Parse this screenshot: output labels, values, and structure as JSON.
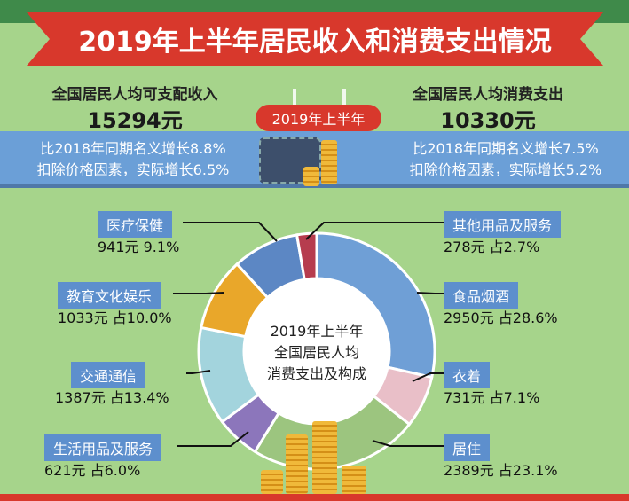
{
  "title": "2019年上半年居民收入和消费支出情况",
  "period_badge": "2019年上半年",
  "income": {
    "heading": "全国居民人均可支配收入",
    "amount": "15294元",
    "line1": "比2018年同期名义增长8.8%",
    "line2": "扣除价格因素，实际增长6.5%"
  },
  "spending": {
    "heading": "全国居民人均消费支出",
    "amount": "10330元",
    "line1": "比2018年同期名义增长7.5%",
    "line2": "扣除价格因素，实际增长5.2%"
  },
  "chart_data": {
    "type": "pie",
    "variant": "donut",
    "title": "2019年上半年 全国居民人均 消费支出及构成",
    "center_lines": [
      "2019年上半年",
      "全国居民人均",
      "消费支出及构成"
    ],
    "unit": "元",
    "slices": [
      {
        "name": "食品烟酒",
        "value": 2950,
        "percent": 28.6,
        "value_label": "2950元 占28.6%",
        "color": "#6f9fd6"
      },
      {
        "name": "衣着",
        "value": 731,
        "percent": 7.1,
        "value_label": "731元 占7.1%",
        "color": "#e9bfc8"
      },
      {
        "name": "居住",
        "value": 2389,
        "percent": 23.1,
        "value_label": "2389元 占23.1%",
        "color": "#9cc57f"
      },
      {
        "name": "生活用品及服务",
        "value": 621,
        "percent": 6.0,
        "value_label": "621元 占6.0%",
        "color": "#8c76bb"
      },
      {
        "name": "交通通信",
        "value": 1387,
        "percent": 13.4,
        "value_label": "1387元 占13.4%",
        "color": "#a3d4dd"
      },
      {
        "name": "教育文化娱乐",
        "value": 1033,
        "percent": 10.0,
        "value_label": "1033元 占10.0%",
        "color": "#e9a72a"
      },
      {
        "name": "医疗保健",
        "value": 941,
        "percent": 9.1,
        "value_label": "941元 9.1%",
        "color": "#5c87c4"
      },
      {
        "name": "其他用品及服务",
        "value": 278,
        "percent": 2.7,
        "value_label": "278元 占2.7%",
        "color": "#b63c4e"
      }
    ]
  }
}
